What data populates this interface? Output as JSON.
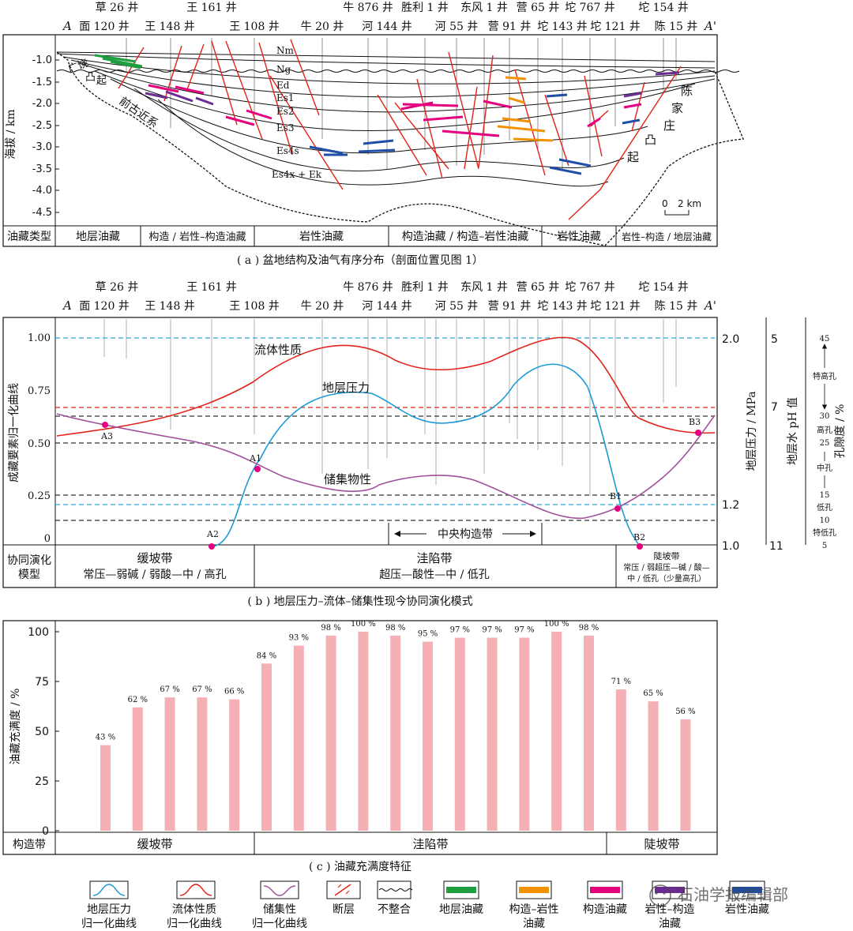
{
  "wells_top": [
    "草 26 井",
    "王 161 井",
    "牛 876 井",
    "胜利 1 井",
    "东风 1 井",
    "营 65 井",
    "坨 767 井",
    "坨 154 井"
  ],
  "wells_bottom": [
    "面 120 井",
    "王 148 井",
    "王 108 井",
    "牛 20 井",
    "河 144 井",
    "河 55 井",
    "营 91 井",
    "坨 143 井",
    "坨 121 井",
    "陈 15 井"
  ],
  "section_ends": {
    "left": "A",
    "right": "A'"
  },
  "panel_a": {
    "y_axis_title": "海拔 / km",
    "y_ticks": [
      "-1.0",
      "-1.5",
      "-2.0",
      "-2.5",
      "-3.0",
      "-3.5",
      "-4.0",
      "-4.5"
    ],
    "strata": [
      "Nm",
      "Ng",
      "Ed",
      "Es1",
      "Es2",
      "Es3",
      "Es4s",
      "Es4x + Ek"
    ],
    "labels": {
      "left_uplift_a": "广饶",
      "left_uplift_b": "凸",
      "left_uplift_c": "起",
      "basement": "前古近系",
      "right_uplift": [
        "陈",
        "家",
        "庄",
        "凸",
        "起"
      ]
    },
    "scale_bar": {
      "zero": "0",
      "length": "2 km"
    },
    "reservoir_type_header": "油藏类型",
    "reservoir_types": [
      "地层油藏",
      "构造 / 岩性–构造油藏",
      "岩性油藏",
      "构造油藏 / 构造–岩性油藏",
      "岩性油藏",
      "岩性–构造 / 地层油藏"
    ],
    "caption": "( a ) 盆地结构及油气有序分布（剖面位置见图 1）"
  },
  "panel_b": {
    "y_axis_title": "成藏要素归一化曲线",
    "y_ticks": [
      "1.00",
      "0.75",
      "0.50",
      "0.25",
      "0"
    ],
    "right_axis_pressure_title": "地层压力 / MPa",
    "pressure_ticks": [
      "2.0",
      "1.2",
      "1.0"
    ],
    "right_axis_ph_title": "地层水 pH 值",
    "ph_ticks": [
      "5",
      "7",
      "11"
    ],
    "right_axis_porosity_title": "孔隙度 / %",
    "porosity_ticks": [
      "45",
      "30",
      "25",
      "15",
      "10",
      "5"
    ],
    "porosity_classes": [
      "特高孔",
      "高孔",
      "中孔",
      "低孔",
      "特低孔"
    ],
    "curve_labels": {
      "fluid": "流体性质",
      "pressure": "地层压力",
      "reservoir": "储集物性"
    },
    "points": [
      "A3",
      "A1",
      "A2",
      "B1",
      "B2",
      "B3"
    ],
    "central_zone": "中央构造带",
    "model_header_a": "协同演化",
    "model_header_b": "模型",
    "zones": [
      {
        "name": "缓坡带",
        "desc": "常压—弱碱 / 弱酸—中 / 高孔"
      },
      {
        "name": "洼陷带",
        "desc": "超压—酸性—中 / 低孔"
      },
      {
        "name": "陡坡带",
        "desc": "常压 / 弱超压—碱 / 酸—",
        "desc2": "中 / 低孔（少量高孔）"
      }
    ],
    "caption": "( b ) 地层压力–流体–储集性现今协同演化模式"
  },
  "panel_c": {
    "zones_header": "构造带",
    "zones": [
      "缓坡带",
      "洼陷带",
      "陡坡带"
    ],
    "caption": "( c ) 油藏充满度特征"
  },
  "chart_data": {
    "type": "bar",
    "title": "油藏充满度特征",
    "ylabel": "油藏充满度 / %",
    "ylim": [
      0,
      100
    ],
    "yticks": [
      0,
      25,
      50,
      75,
      100
    ],
    "values": [
      43,
      62,
      67,
      67,
      66,
      84,
      93,
      98,
      100,
      98,
      95,
      97,
      97,
      97,
      100,
      98,
      71,
      65,
      56
    ],
    "value_labels": [
      "43 %",
      "62 %",
      "67 %",
      "67 %",
      "66 %",
      "84 %",
      "93 %",
      "98 %",
      "100 %",
      "98 %",
      "95 %",
      "97 %",
      "97 %",
      "97 %",
      "100 %",
      "98 %",
      "71 %",
      "65 %",
      "56 %"
    ],
    "bar_color": "#f4b0b4"
  },
  "legend": {
    "items": [
      {
        "label": "地层压力",
        "label2": "归一化曲线",
        "icon": "pressure-curve-icon"
      },
      {
        "label": "流体性质",
        "label2": "归一化曲线",
        "icon": "fluid-curve-icon"
      },
      {
        "label": "储集性",
        "label2": "归一化曲线",
        "icon": "reservoir-curve-icon"
      },
      {
        "label": "断层",
        "label2": "",
        "icon": "fault-icon"
      },
      {
        "label": "不整合",
        "label2": "",
        "icon": "unconformity-icon"
      },
      {
        "label": "地层油藏",
        "label2": "",
        "icon": "stratigraphic-reservoir-icon"
      },
      {
        "label": "构造–岩性",
        "label2": "油藏",
        "icon": "structural-lithologic-reservoir-icon"
      },
      {
        "label": "构造油藏",
        "label2": "",
        "icon": "structural-reservoir-icon"
      },
      {
        "label": "岩性–构造",
        "label2": "油藏",
        "icon": "lithologic-structural-reservoir-icon"
      },
      {
        "label": "岩性油藏",
        "label2": "",
        "icon": "lithologic-reservoir-icon"
      }
    ],
    "watermark": "石油学报编辑部"
  },
  "colors": {
    "pressure": "#1a9ad6",
    "fluid": "#e2231a",
    "reservoir": "#a0509c",
    "stratigraphic": "#1e9e3e",
    "structural_lithologic": "#f39200",
    "structural": "#e4007f",
    "lithologic_structural": "#6a2c91",
    "lithologic": "#1f4ea8"
  }
}
